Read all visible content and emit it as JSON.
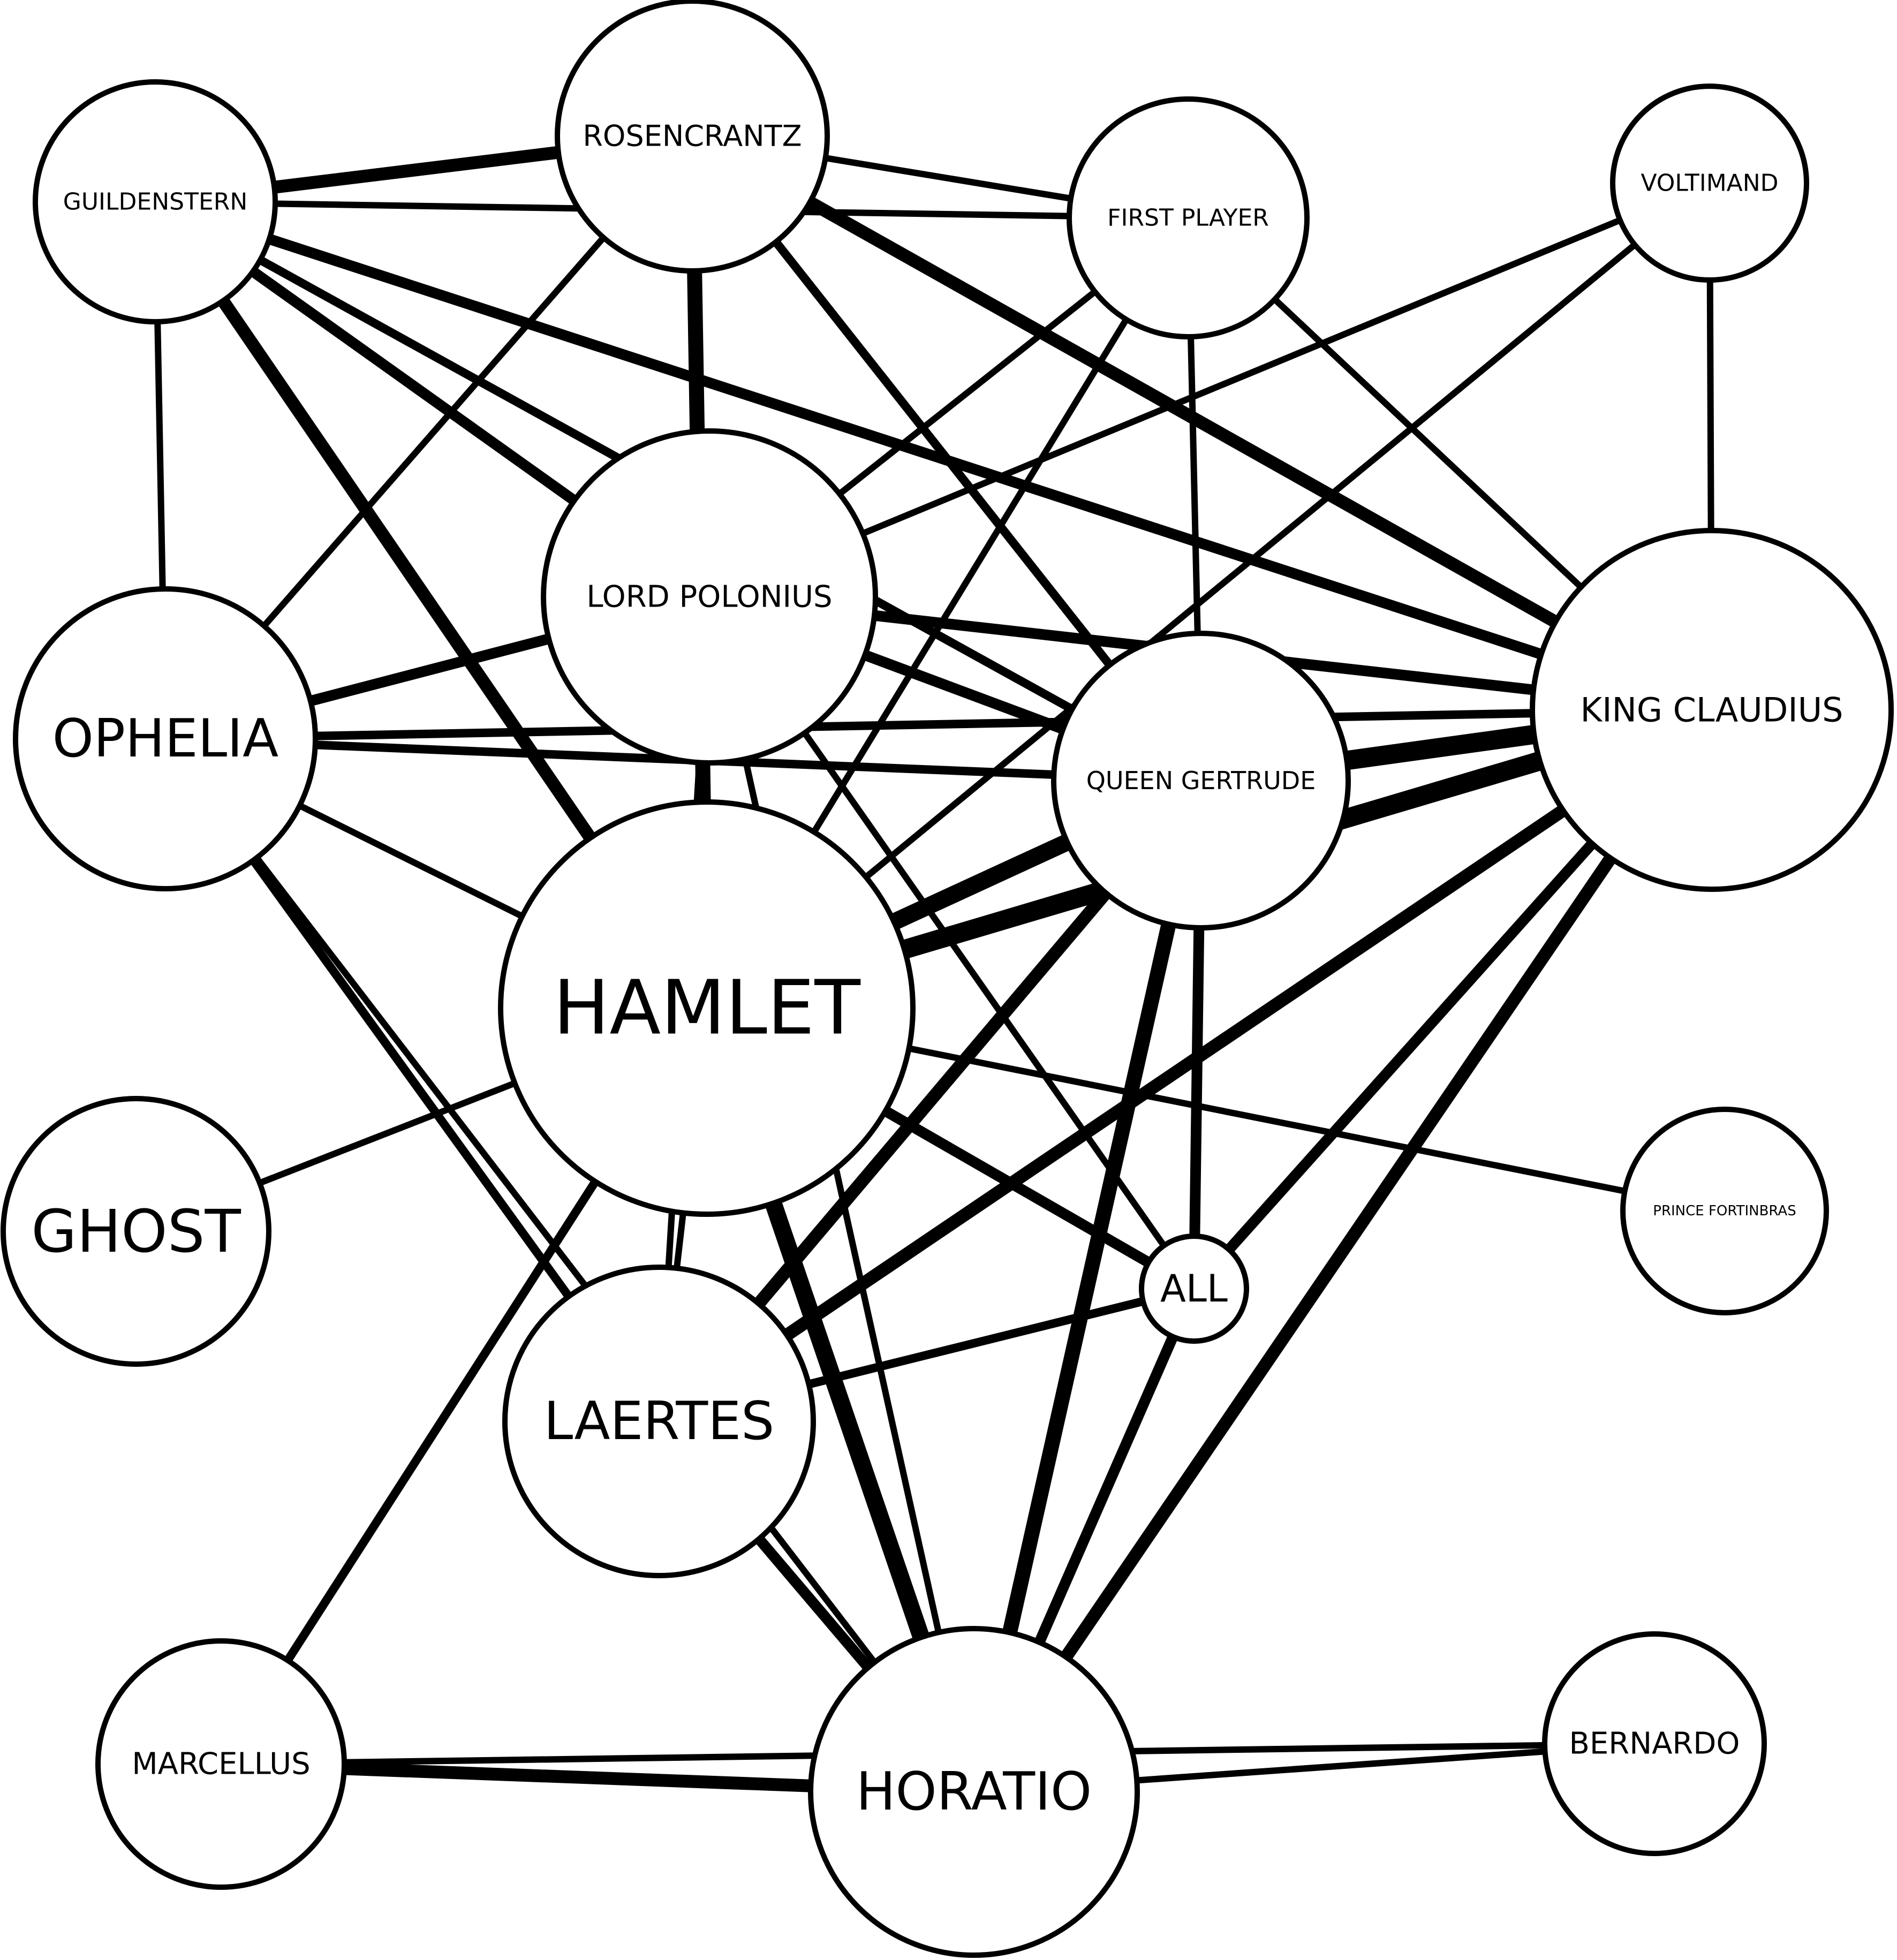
{
  "colors": {
    "background": "#ffffff",
    "stroke": "#000000"
  },
  "nodes": [
    {
      "id": "hamlet",
      "label": "HAMLET"
    },
    {
      "id": "king_claudius",
      "label": "KING CLAUDIUS"
    },
    {
      "id": "queen_gertrude",
      "label": "QUEEN GERTRUDE"
    },
    {
      "id": "lord_polonius",
      "label": "LORD POLONIUS"
    },
    {
      "id": "horatio",
      "label": "HORATIO"
    },
    {
      "id": "laertes",
      "label": "LAERTES"
    },
    {
      "id": "ophelia",
      "label": "OPHELIA"
    },
    {
      "id": "rosencrantz",
      "label": "ROSENCRANTZ"
    },
    {
      "id": "guildenstern",
      "label": "GUILDENSTERN"
    },
    {
      "id": "first_player",
      "label": "FIRST PLAYER"
    },
    {
      "id": "voltimand",
      "label": "VOLTIMAND"
    },
    {
      "id": "ghost",
      "label": "GHOST"
    },
    {
      "id": "all",
      "label": "ALL"
    },
    {
      "id": "prince_fortinbras",
      "label": "PRINCE FORTINBRAS"
    },
    {
      "id": "marcellus",
      "label": "MARCELLUS"
    },
    {
      "id": "bernardo",
      "label": "BERNARDO"
    }
  ],
  "edges": [
    {
      "source": "guildenstern",
      "target": "rosencrantz",
      "weight": 5
    },
    {
      "source": "guildenstern",
      "target": "first_player",
      "weight": 2
    },
    {
      "source": "guildenstern",
      "target": "king_claudius",
      "weight": 4
    },
    {
      "source": "guildenstern",
      "target": "hamlet",
      "weight": 5
    },
    {
      "source": "guildenstern",
      "target": "lord_polonius",
      "weight": 4
    },
    {
      "source": "guildenstern",
      "target": "queen_gertrude",
      "weight": 3
    },
    {
      "source": "guildenstern",
      "target": "ophelia",
      "weight": 2
    },
    {
      "source": "rosencrantz",
      "target": "first_player",
      "weight": 2
    },
    {
      "source": "rosencrantz",
      "target": "hamlet",
      "weight": 6
    },
    {
      "source": "rosencrantz",
      "target": "king_claudius",
      "weight": 5
    },
    {
      "source": "rosencrantz",
      "target": "queen_gertrude",
      "weight": 3
    },
    {
      "source": "rosencrantz",
      "target": "ophelia",
      "weight": 2
    },
    {
      "source": "first_player",
      "target": "hamlet",
      "weight": 2
    },
    {
      "source": "first_player",
      "target": "lord_polonius",
      "weight": 2
    },
    {
      "source": "first_player",
      "target": "king_claudius",
      "weight": 2
    },
    {
      "source": "first_player",
      "target": "queen_gertrude",
      "weight": 2
    },
    {
      "source": "voltimand",
      "target": "king_claudius",
      "weight": 2
    },
    {
      "source": "voltimand",
      "target": "lord_polonius",
      "weight": 2
    },
    {
      "source": "voltimand",
      "target": "hamlet",
      "weight": 2
    },
    {
      "source": "lord_polonius",
      "target": "king_claudius",
      "weight": 4
    },
    {
      "source": "lord_polonius",
      "target": "queen_gertrude",
      "weight": 4
    },
    {
      "source": "lord_polonius",
      "target": "ophelia",
      "weight": 4
    },
    {
      "source": "lord_polonius",
      "target": "laertes",
      "weight": 2
    },
    {
      "source": "lord_polonius",
      "target": "horatio",
      "weight": 2
    },
    {
      "source": "lord_polonius",
      "target": "all",
      "weight": 2
    },
    {
      "source": "ophelia",
      "target": "king_claudius",
      "weight": 3
    },
    {
      "source": "ophelia",
      "target": "queen_gertrude",
      "weight": 3
    },
    {
      "source": "ophelia",
      "target": "hamlet",
      "weight": 2
    },
    {
      "source": "ophelia",
      "target": "laertes",
      "weight": 3
    },
    {
      "source": "ophelia",
      "target": "horatio",
      "weight": 2
    },
    {
      "source": "hamlet",
      "target": "queen_gertrude",
      "weight": 7
    },
    {
      "source": "hamlet",
      "target": "king_claudius",
      "weight": 8
    },
    {
      "source": "hamlet",
      "target": "ghost",
      "weight": 2
    },
    {
      "source": "hamlet",
      "target": "laertes",
      "weight": 2
    },
    {
      "source": "hamlet",
      "target": "horatio",
      "weight": 7
    },
    {
      "source": "hamlet",
      "target": "marcellus",
      "weight": 3
    },
    {
      "source": "hamlet",
      "target": "all",
      "weight": 4
    },
    {
      "source": "hamlet",
      "target": "prince_fortinbras",
      "weight": 2
    },
    {
      "source": "king_claudius",
      "target": "queen_gertrude",
      "weight": 8
    },
    {
      "source": "king_claudius",
      "target": "laertes",
      "weight": 5
    },
    {
      "source": "king_claudius",
      "target": "horatio",
      "weight": 5
    },
    {
      "source": "king_claudius",
      "target": "all",
      "weight": 4
    },
    {
      "source": "queen_gertrude",
      "target": "laertes",
      "weight": 5
    },
    {
      "source": "queen_gertrude",
      "target": "horatio",
      "weight": 6
    },
    {
      "source": "queen_gertrude",
      "target": "all",
      "weight": 4
    },
    {
      "source": "laertes",
      "target": "all",
      "weight": 3
    },
    {
      "source": "laertes",
      "target": "horatio",
      "weight": 4
    },
    {
      "source": "all",
      "target": "horatio",
      "weight": 4
    },
    {
      "source": "horatio",
      "target": "marcellus",
      "weight": 5
    },
    {
      "source": "horatio",
      "target": "bernardo",
      "weight": 2
    },
    {
      "source": "marcellus",
      "target": "bernardo",
      "weight": 2
    }
  ]
}
